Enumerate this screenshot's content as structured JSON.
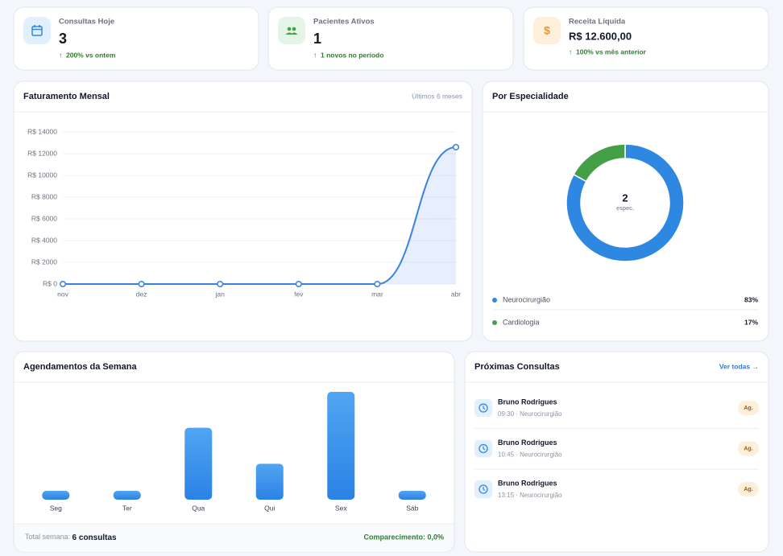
{
  "stats": [
    {
      "label": "Consultas Hoje",
      "value": "3",
      "change": "200% vs ontem"
    },
    {
      "label": "Pacientes Ativos",
      "value": "1",
      "change": "1 novos no período"
    },
    {
      "label": "Receita Líquida",
      "value": "R$ 12.600,00",
      "change": "100% vs mês anterior"
    }
  ],
  "chart_data": [
    {
      "type": "line",
      "title": "Faturamento Mensal",
      "subtitle": "Últimos 6 meses",
      "categories": [
        "nov",
        "dez",
        "jan",
        "fev",
        "mar",
        "abr"
      ],
      "values": [
        0,
        0,
        0,
        0,
        0,
        12600
      ],
      "color": "#3b82e0",
      "ylim": [
        0,
        14000
      ],
      "yticks": [
        {
          "value": 0,
          "label": "R$ 0"
        },
        {
          "value": 2000,
          "label": "R$ 2000"
        },
        {
          "value": 4000,
          "label": "R$ 4000"
        },
        {
          "value": 6000,
          "label": "R$ 6000"
        },
        {
          "value": 8000,
          "label": "R$ 8000"
        },
        {
          "value": 10000,
          "label": "R$ 10000"
        },
        {
          "value": 12000,
          "label": "R$ 12000"
        },
        {
          "value": 14000,
          "label": "R$ 14000"
        }
      ],
      "grid": true
    },
    {
      "type": "donut",
      "title": "Por Especialidade",
      "center_label": "2",
      "center_sublabel": "espec.",
      "categories": [
        "Neurocirurgião",
        "Cardiologia"
      ],
      "values": [
        83,
        17
      ],
      "value_labels": [
        "83%",
        "17%"
      ],
      "colors": [
        "#2e88e2",
        "#43a047"
      ]
    },
    {
      "type": "bar",
      "title": "Agendamentos da Semana",
      "categories": [
        "Seg",
        "Ter",
        "Qua",
        "Qui",
        "Sex",
        "Sáb"
      ],
      "values": [
        0,
        0,
        2,
        1,
        3,
        0
      ],
      "color": "#3690e8"
    }
  ],
  "week_summary": {
    "label": "Total semana:",
    "value": "6 consultas",
    "attendance": "Comparecimento: 0,0%"
  },
  "appointments": {
    "title": "Próximas Consultas",
    "link": "Ver todas →",
    "items": [
      {
        "name": "Bruno Rodrigues",
        "detail": "09:30 · Neurocirurgião",
        "status": "Ag."
      },
      {
        "name": "Bruno Rodrigues",
        "detail": "10:45 · Neurocirurgião",
        "status": "Ag."
      },
      {
        "name": "Bruno Rodrigues",
        "detail": "13:15 · Neurocirurgião",
        "status": "Ag."
      }
    ]
  }
}
